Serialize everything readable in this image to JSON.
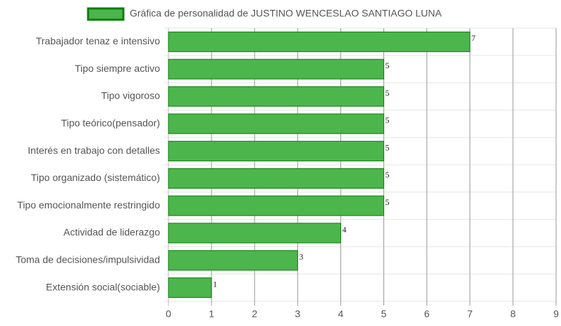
{
  "chart_data": {
    "type": "bar",
    "orientation": "horizontal",
    "categories": [
      "Trabajador tenaz e intensivo",
      "Tipo siempre activo",
      "Tipo vigoroso",
      "Tipo teórico(pensador)",
      "Interés en trabajo con detalles",
      "Tipo organizado (sistemático)",
      "Tipo emocionalmente restringido",
      "Actividad de liderazgo",
      "Toma de decisiones/impulsividad",
      "Extensión social(sociable)"
    ],
    "series": [
      {
        "name": "Gráfica de personalidad de JUSTINO WENCESLAO SANTIAGO LUNA",
        "color": "#4cb54c",
        "border_color": "#0b7f0b",
        "values": [
          7,
          5,
          5,
          5,
          5,
          5,
          5,
          4,
          3,
          1
        ]
      }
    ],
    "xlim": [
      0,
      9
    ],
    "xticks": [
      0,
      1,
      2,
      3,
      4,
      5,
      6,
      7,
      8,
      9
    ],
    "grid": true,
    "legend": "top"
  }
}
